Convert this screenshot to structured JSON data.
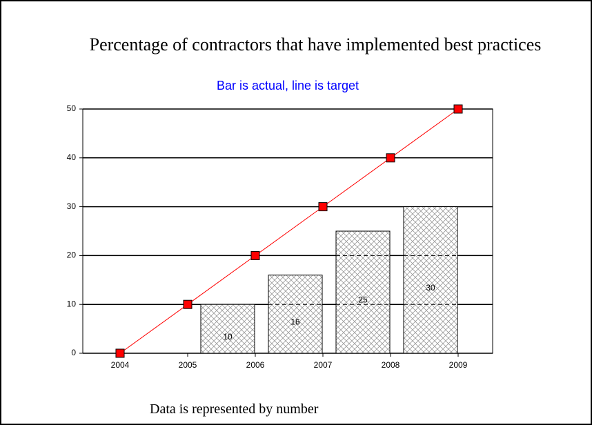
{
  "chart_data": {
    "type": "bar_line",
    "title": "Percentage of contractors that have implemented best practices",
    "subtitle": "Bar is actual, line is target",
    "footer": "Data is represented by number",
    "categories": [
      "2004",
      "2005",
      "2006",
      "2007",
      "2008",
      "2009"
    ],
    "series": [
      {
        "name": "actual",
        "type": "bar",
        "color": "#808080",
        "values": [
          null,
          10,
          16,
          25,
          30,
          null
        ]
      },
      {
        "name": "target",
        "type": "line",
        "color": "#ff0000",
        "values": [
          0,
          10,
          20,
          30,
          40,
          50
        ]
      }
    ],
    "ylim": [
      0,
      50
    ],
    "yticks": [
      0,
      10,
      20,
      30,
      40,
      50
    ],
    "grid": true
  }
}
